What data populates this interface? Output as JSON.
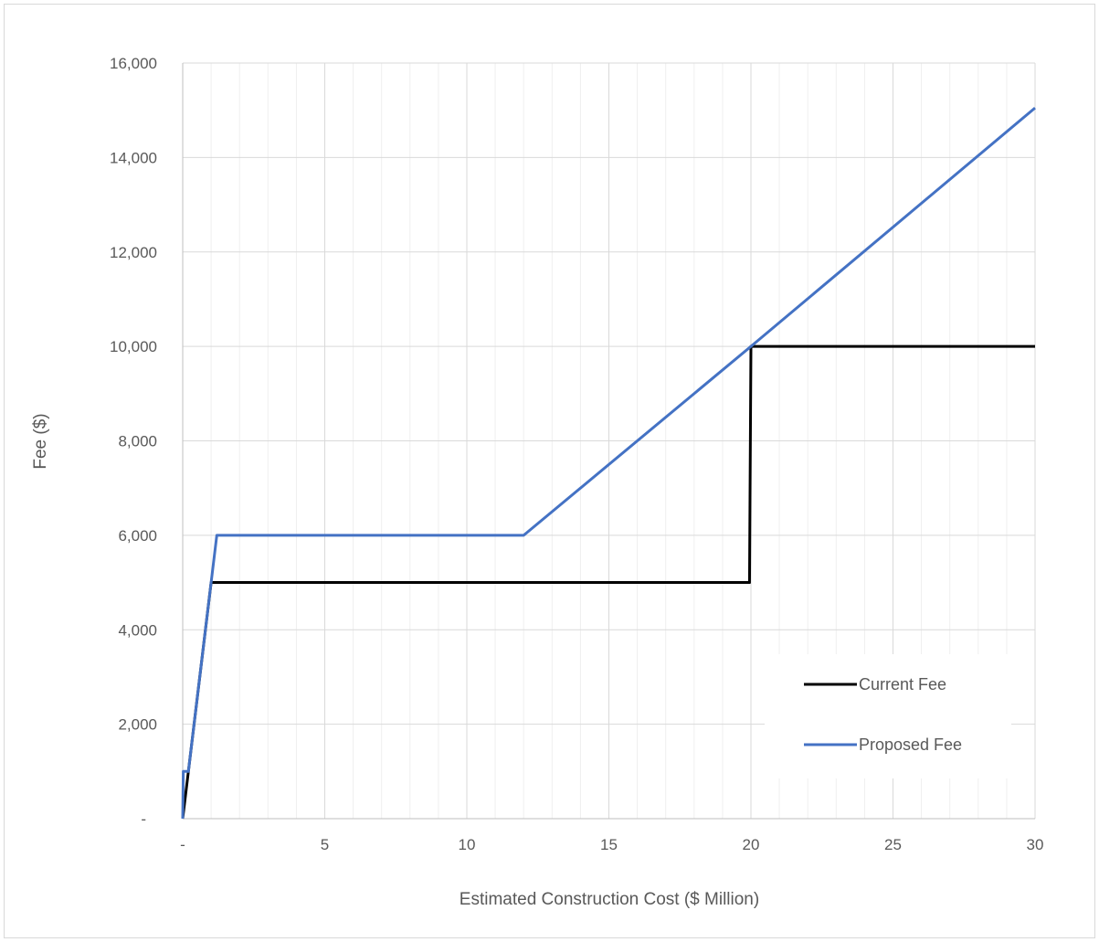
{
  "chart_data": {
    "type": "line",
    "title": "",
    "xlabel": "Estimated Construction Cost ($ Million)",
    "ylabel": "Fee ($)",
    "xlim": [
      0,
      30
    ],
    "ylim": [
      0,
      16000
    ],
    "grid": true,
    "x_minor_step": 1,
    "x_ticks": [
      {
        "value": 0,
        "label": "-"
      },
      {
        "value": 5,
        "label": "5"
      },
      {
        "value": 10,
        "label": "10"
      },
      {
        "value": 15,
        "label": "15"
      },
      {
        "value": 20,
        "label": "20"
      },
      {
        "value": 25,
        "label": "25"
      },
      {
        "value": 30,
        "label": "30"
      }
    ],
    "y_ticks": [
      {
        "value": 0,
        "label": "-"
      },
      {
        "value": 2000,
        "label": "2,000"
      },
      {
        "value": 4000,
        "label": "4,000"
      },
      {
        "value": 6000,
        "label": "6,000"
      },
      {
        "value": 8000,
        "label": "8,000"
      },
      {
        "value": 10000,
        "label": "10,000"
      },
      {
        "value": 12000,
        "label": "12,000"
      },
      {
        "value": 14000,
        "label": "14,000"
      },
      {
        "value": 16000,
        "label": "16,000"
      }
    ],
    "legend_position": "bottom-right",
    "series": [
      {
        "name": "Current Fee",
        "color": "#000000",
        "points": [
          [
            0,
            0
          ],
          [
            0.1,
            500
          ],
          [
            0.2,
            1000
          ],
          [
            1,
            5000
          ],
          [
            19.95,
            5000
          ],
          [
            20,
            10000
          ],
          [
            30,
            10000
          ]
        ]
      },
      {
        "name": "Proposed Fee",
        "color": "#4472c4",
        "points": [
          [
            0,
            0
          ],
          [
            0.02,
            1000
          ],
          [
            0.2,
            1000
          ],
          [
            1.2,
            6000
          ],
          [
            12,
            6000
          ],
          [
            20,
            10000
          ],
          [
            30,
            15050
          ]
        ]
      }
    ]
  }
}
